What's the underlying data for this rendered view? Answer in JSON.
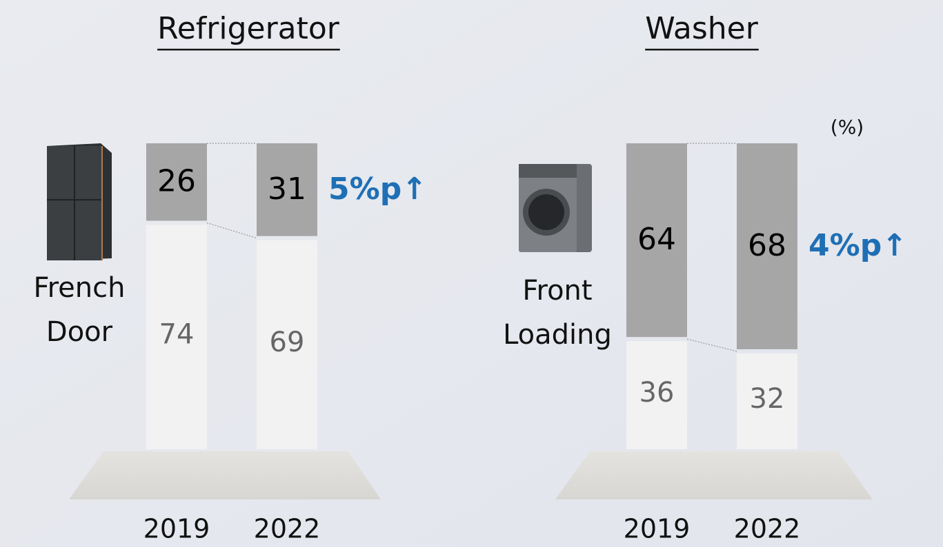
{
  "chart_data": [
    {
      "type": "stacked_bar",
      "title": "Refrigerator",
      "product": [
        "French",
        "Door"
      ],
      "categories": [
        "2019",
        "2022"
      ],
      "ylim": [
        0,
        100
      ],
      "series": [
        {
          "color": "#f2f2f2",
          "label_color": "#666666",
          "values": [
            74,
            69
          ]
        },
        {
          "color": "#a6a6a6",
          "label_color": "#000000",
          "values": [
            26,
            31
          ]
        }
      ],
      "annotation": "5%p↑",
      "annotation_color": "#1f6fb5"
    },
    {
      "type": "stacked_bar",
      "title": "Washer",
      "product": [
        "Front",
        "Loading"
      ],
      "unit": "(%)",
      "categories": [
        "2019",
        "2022"
      ],
      "ylim": [
        0,
        100
      ],
      "series": [
        {
          "color": "#f2f2f2",
          "label_color": "#666666",
          "values": [
            36,
            32
          ]
        },
        {
          "color": "#a6a6a6",
          "label_color": "#000000",
          "values": [
            64,
            68
          ]
        }
      ],
      "annotation": "4%p↑",
      "annotation_color": "#1f6fb5"
    }
  ]
}
